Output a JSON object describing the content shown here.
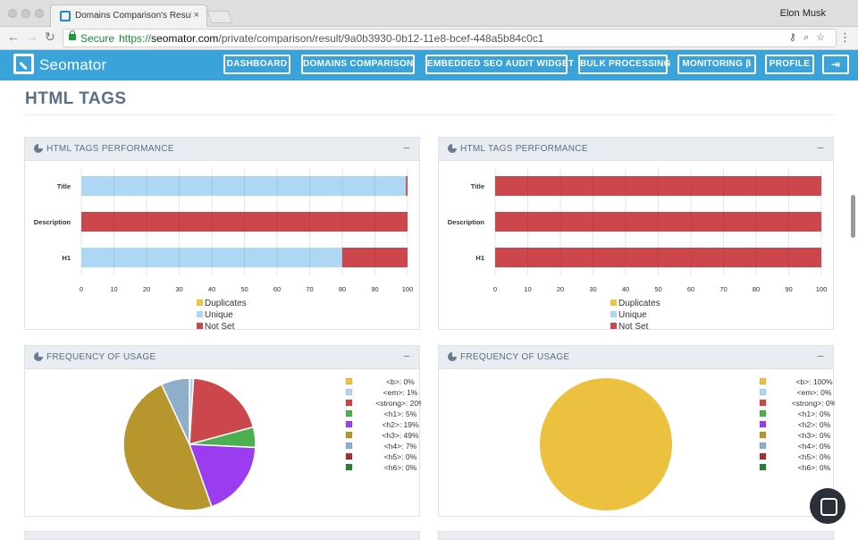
{
  "browser": {
    "tab_title": "Domains Comparison's Result",
    "tab_close": "×",
    "user": "Elon Musk",
    "secure_label": "Secure",
    "url_scheme": "https://",
    "url_host": "seomator.com",
    "url_path": "/private/comparison/result/9a0b3930-0b12-11e8-bcef-448a5b84c0c1"
  },
  "app": {
    "brand": "Seomator",
    "nav": [
      {
        "label": "DASHBOARD"
      },
      {
        "label": "DOMAINS COMPARISON"
      },
      {
        "label": "EMBEDDED SEO AUDIT WIDGET"
      },
      {
        "label": "BULK PROCESSING"
      },
      {
        "label": "MONITORING β"
      },
      {
        "label": "PROFILE"
      }
    ]
  },
  "page": {
    "title": "HTML TAGS"
  },
  "panels": {
    "perf_title": "HTML TAGS PERFORMANCE",
    "freq_title": "FREQUENCY OF USAGE",
    "minimize": "−"
  },
  "colors": {
    "duplicates": "#f0c33c",
    "unique": "#aed6f5",
    "not_set": "#cc474b"
  },
  "chart_data": [
    {
      "type": "bar",
      "orientation": "horizontal",
      "stacked": true,
      "categories": [
        "Title",
        "Description",
        "H1"
      ],
      "series": [
        {
          "name": "Duplicates",
          "values": [
            0,
            0,
            0
          ]
        },
        {
          "name": "Unique",
          "values": [
            99.5,
            0,
            80
          ]
        },
        {
          "name": "Not Set",
          "values": [
            0.5,
            100,
            20
          ]
        }
      ],
      "xlim": [
        0,
        100
      ],
      "xticks": [
        0,
        10,
        20,
        30,
        40,
        50,
        60,
        70,
        80,
        90,
        100
      ],
      "legend": "bottom",
      "grid": true
    },
    {
      "type": "bar",
      "orientation": "horizontal",
      "stacked": true,
      "categories": [
        "Title",
        "Description",
        "H1"
      ],
      "series": [
        {
          "name": "Duplicates",
          "values": [
            0,
            0,
            0
          ]
        },
        {
          "name": "Unique",
          "values": [
            0,
            0,
            0
          ]
        },
        {
          "name": "Not Set",
          "values": [
            100,
            100,
            100
          ]
        }
      ],
      "xlim": [
        0,
        100
      ],
      "xticks": [
        0,
        10,
        20,
        30,
        40,
        50,
        60,
        70,
        80,
        90,
        100
      ],
      "legend": "bottom",
      "grid": true
    },
    {
      "type": "pie",
      "labels": [
        "<b>",
        "<em>",
        "<strong>",
        "<h1>",
        "<h2>",
        "<h3>",
        "<h4>",
        "<h5>",
        "<h6>"
      ],
      "values": [
        0,
        1,
        20,
        5,
        19,
        49,
        7,
        0,
        0
      ],
      "legend_text": [
        "<b>: 0%",
        "<em>: 1%",
        "<strong>: 20%",
        "<h1>: 5%",
        "<h2>: 19%",
        "<h3>: 49%",
        "<h4>: 7%",
        "<h5>: 0%",
        "<h6>: 0%"
      ],
      "colors": [
        "#f0c33c",
        "#aed6f5",
        "#cc474b",
        "#4caf50",
        "#9b3cf0",
        "#b8962e",
        "#8eaec9",
        "#a53030",
        "#2e7d32"
      ],
      "legend": "right"
    },
    {
      "type": "pie",
      "labels": [
        "<b>",
        "<em>",
        "<strong>",
        "<h1>",
        "<h2>",
        "<h3>",
        "<h4>",
        "<h5>",
        "<h6>"
      ],
      "values": [
        100,
        0,
        0,
        0,
        0,
        0,
        0,
        0,
        0
      ],
      "legend_text": [
        "<b>: 100%",
        "<em>: 0%",
        "<strong>: 0%",
        "<h1>: 0%",
        "<h2>: 0%",
        "<h3>: 0%",
        "<h4>: 0%",
        "<h5>: 0%",
        "<h6>: 0%"
      ],
      "colors": [
        "#ecc140",
        "#aed6f5",
        "#cc474b",
        "#4caf50",
        "#9b3cf0",
        "#b8962e",
        "#8eaec9",
        "#a53030",
        "#2e7d32"
      ],
      "legend": "right"
    }
  ]
}
